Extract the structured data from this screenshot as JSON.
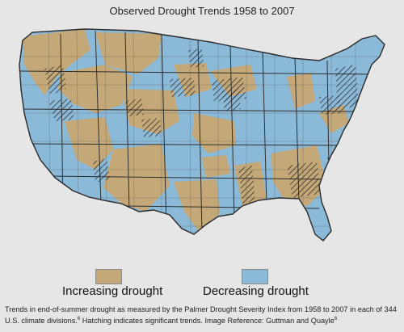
{
  "title": "Observed Drought Trends 1958 to 2007",
  "colors": {
    "increasing": "#c4a878",
    "decreasing": "#8bb9d8",
    "border": "#3a3a3a",
    "background": "#e6e6e6"
  },
  "legend": {
    "increasing_label": "Increasing drought",
    "decreasing_label": "Decreasing drought"
  },
  "caption": {
    "text": "Trends in end-of-summer drought as measured by the Palmer Drought Severity Index from 1958 to 2007 in each of 344 U.S. climate divisions.",
    "note_mark_1": "6",
    "text_2": " Hatching indicates significant trends. Image Reference: Guttman and Quayle",
    "note_mark_2": "6"
  }
}
